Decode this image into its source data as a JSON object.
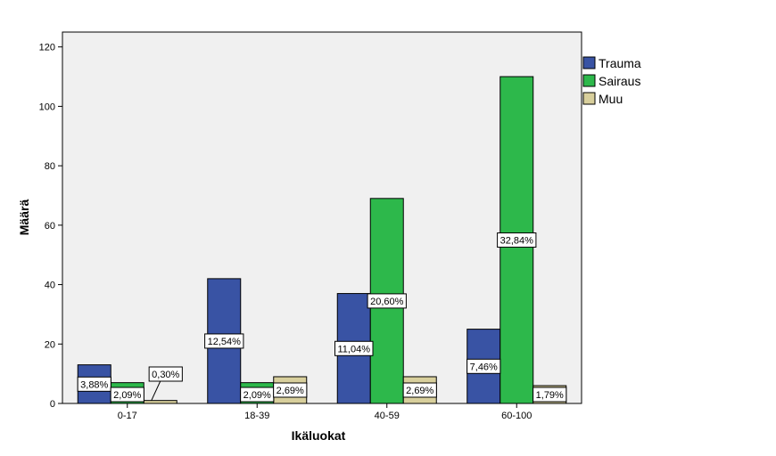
{
  "chart_data": {
    "type": "bar",
    "title": "",
    "xlabel": "Ikäluokat",
    "ylabel": "Määrä",
    "categories": [
      "0-17",
      "18-39",
      "40-59",
      "60-100"
    ],
    "ylim": [
      0,
      125
    ],
    "yticks": [
      0,
      20,
      40,
      60,
      80,
      100,
      120
    ],
    "grid": false,
    "legend_position": "right",
    "series": [
      {
        "name": "Trauma",
        "color": "#3953a4",
        "values": [
          13,
          42,
          37,
          25
        ],
        "labels": [
          "3,88%",
          "12,54%",
          "11,04%",
          "7,46%"
        ]
      },
      {
        "name": "Sairaus",
        "color": "#2db84b",
        "values": [
          7,
          7,
          69,
          110
        ],
        "labels": [
          "2,09%",
          "2,09%",
          "20,60%",
          "32,84%"
        ]
      },
      {
        "name": "Muu",
        "color": "#d8cf9c",
        "values": [
          1,
          9,
          9,
          6
        ],
        "labels": [
          "0,30%",
          "2,69%",
          "2,69%",
          "1,79%"
        ]
      }
    ],
    "plot_background": "#f0f0f0"
  }
}
